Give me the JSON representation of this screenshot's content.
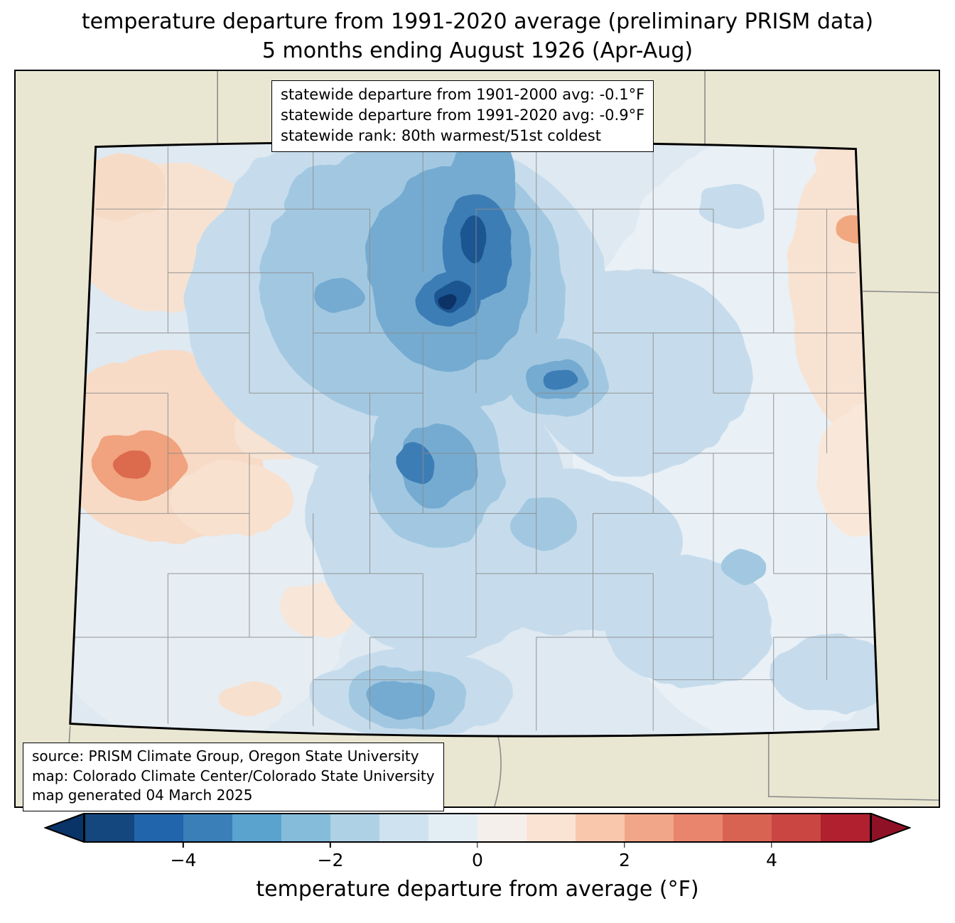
{
  "title": {
    "line1": "temperature departure from 1991-2020 average (preliminary PRISM data)",
    "line2": "5 months ending August 1926 (Apr-Aug)"
  },
  "stats_box": {
    "lines": [
      "statewide departure from 1901-2000 avg: -0.1°F",
      "statewide departure from 1991-2020 avg: -0.9°F",
      "statewide rank: 80th warmest/51st coldest"
    ]
  },
  "source_box": {
    "lines": [
      "source: PRISM Climate Group, Oregon State University",
      "map: Colorado Climate Center/Colorado State University",
      "map generated 04 March 2025"
    ]
  },
  "colorbar": {
    "label": "temperature departure from average (°F)",
    "ticks": [
      {
        "label": "−4",
        "pos": 12.5
      },
      {
        "label": "−2",
        "pos": 31.25
      },
      {
        "label": "0",
        "pos": 50
      },
      {
        "label": "2",
        "pos": 68.75
      },
      {
        "label": "4",
        "pos": 87.5
      }
    ],
    "segment_colors": [
      "#14477d",
      "#2166ac",
      "#3a7fb8",
      "#5ba3cf",
      "#85bcda",
      "#aed1e6",
      "#cfe2ef",
      "#e3edf4",
      "#f5efeb",
      "#fbe3d4",
      "#f8c7ac",
      "#f2a689",
      "#e8856c",
      "#d96352",
      "#c94642",
      "#b1202f"
    ],
    "arrow_left_color": "#083468",
    "arrow_right_color": "#8f1126"
  },
  "map": {
    "region_label": "Colorado",
    "outside_fill": "#e9e7d2",
    "state_border_color": "#000000",
    "county_line_color": "#8c8c8c",
    "neighbor_line_color": "#8c8c8c",
    "base_fill": "#dfe9f2"
  }
}
